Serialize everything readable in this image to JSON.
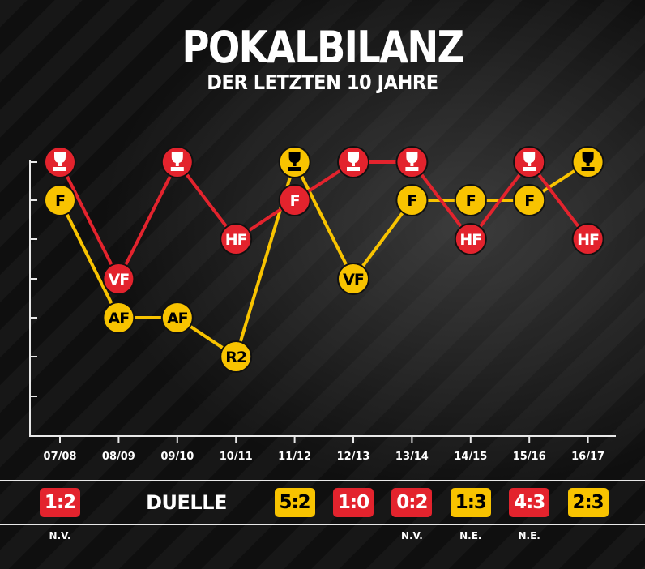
{
  "title": "POKALBILANZ",
  "subtitle": "DER LETZTEN 10 JAHRE",
  "colors": {
    "red": "#e3232d",
    "yellow": "#f8c300",
    "background": "#0f0f0f"
  },
  "chart_data": {
    "type": "line",
    "x": [
      "07/08",
      "08/09",
      "09/10",
      "10/11",
      "11/12",
      "12/13",
      "13/14",
      "14/15",
      "15/16",
      "16/17"
    ],
    "rounds": [
      "R2",
      "AF",
      "VF",
      "HF",
      "F",
      "Sieger"
    ],
    "series": [
      {
        "color": "red",
        "values": [
          "Sieger",
          "VF",
          "Sieger",
          "HF",
          "F",
          "Sieger",
          "Sieger",
          "HF",
          "Sieger",
          "HF"
        ],
        "labels": [
          "trophy-icon",
          "VF",
          "trophy-icon",
          "HF",
          "F",
          "trophy-icon",
          "trophy-icon",
          "HF",
          "trophy-icon",
          "HF"
        ]
      },
      {
        "color": "yellow",
        "values": [
          "F",
          "AF",
          "AF",
          "R2",
          "Sieger",
          "VF",
          "F",
          "F",
          "F",
          "Sieger"
        ],
        "labels": [
          "F",
          "AF",
          "AF",
          "R2",
          "trophy-icon",
          "VF",
          "F",
          "F",
          "F",
          "trophy-icon"
        ]
      }
    ],
    "grid": false
  },
  "duels": {
    "label": "DUELLE",
    "items": [
      {
        "season": "07/08",
        "score": "1:2",
        "color": "red",
        "note": "N.V."
      },
      {
        "season": "11/12",
        "score": "5:2",
        "color": "yellow",
        "note": ""
      },
      {
        "season": "12/13",
        "score": "1:0",
        "color": "red",
        "note": ""
      },
      {
        "season": "13/14",
        "score": "0:2",
        "color": "red",
        "note": "N.V."
      },
      {
        "season": "14/15",
        "score": "1:3",
        "color": "yellow",
        "note": "N.E."
      },
      {
        "season": "15/16",
        "score": "4:3",
        "color": "red",
        "note": "N.E."
      },
      {
        "season": "16/17",
        "score": "2:3",
        "color": "yellow",
        "note": ""
      }
    ]
  }
}
